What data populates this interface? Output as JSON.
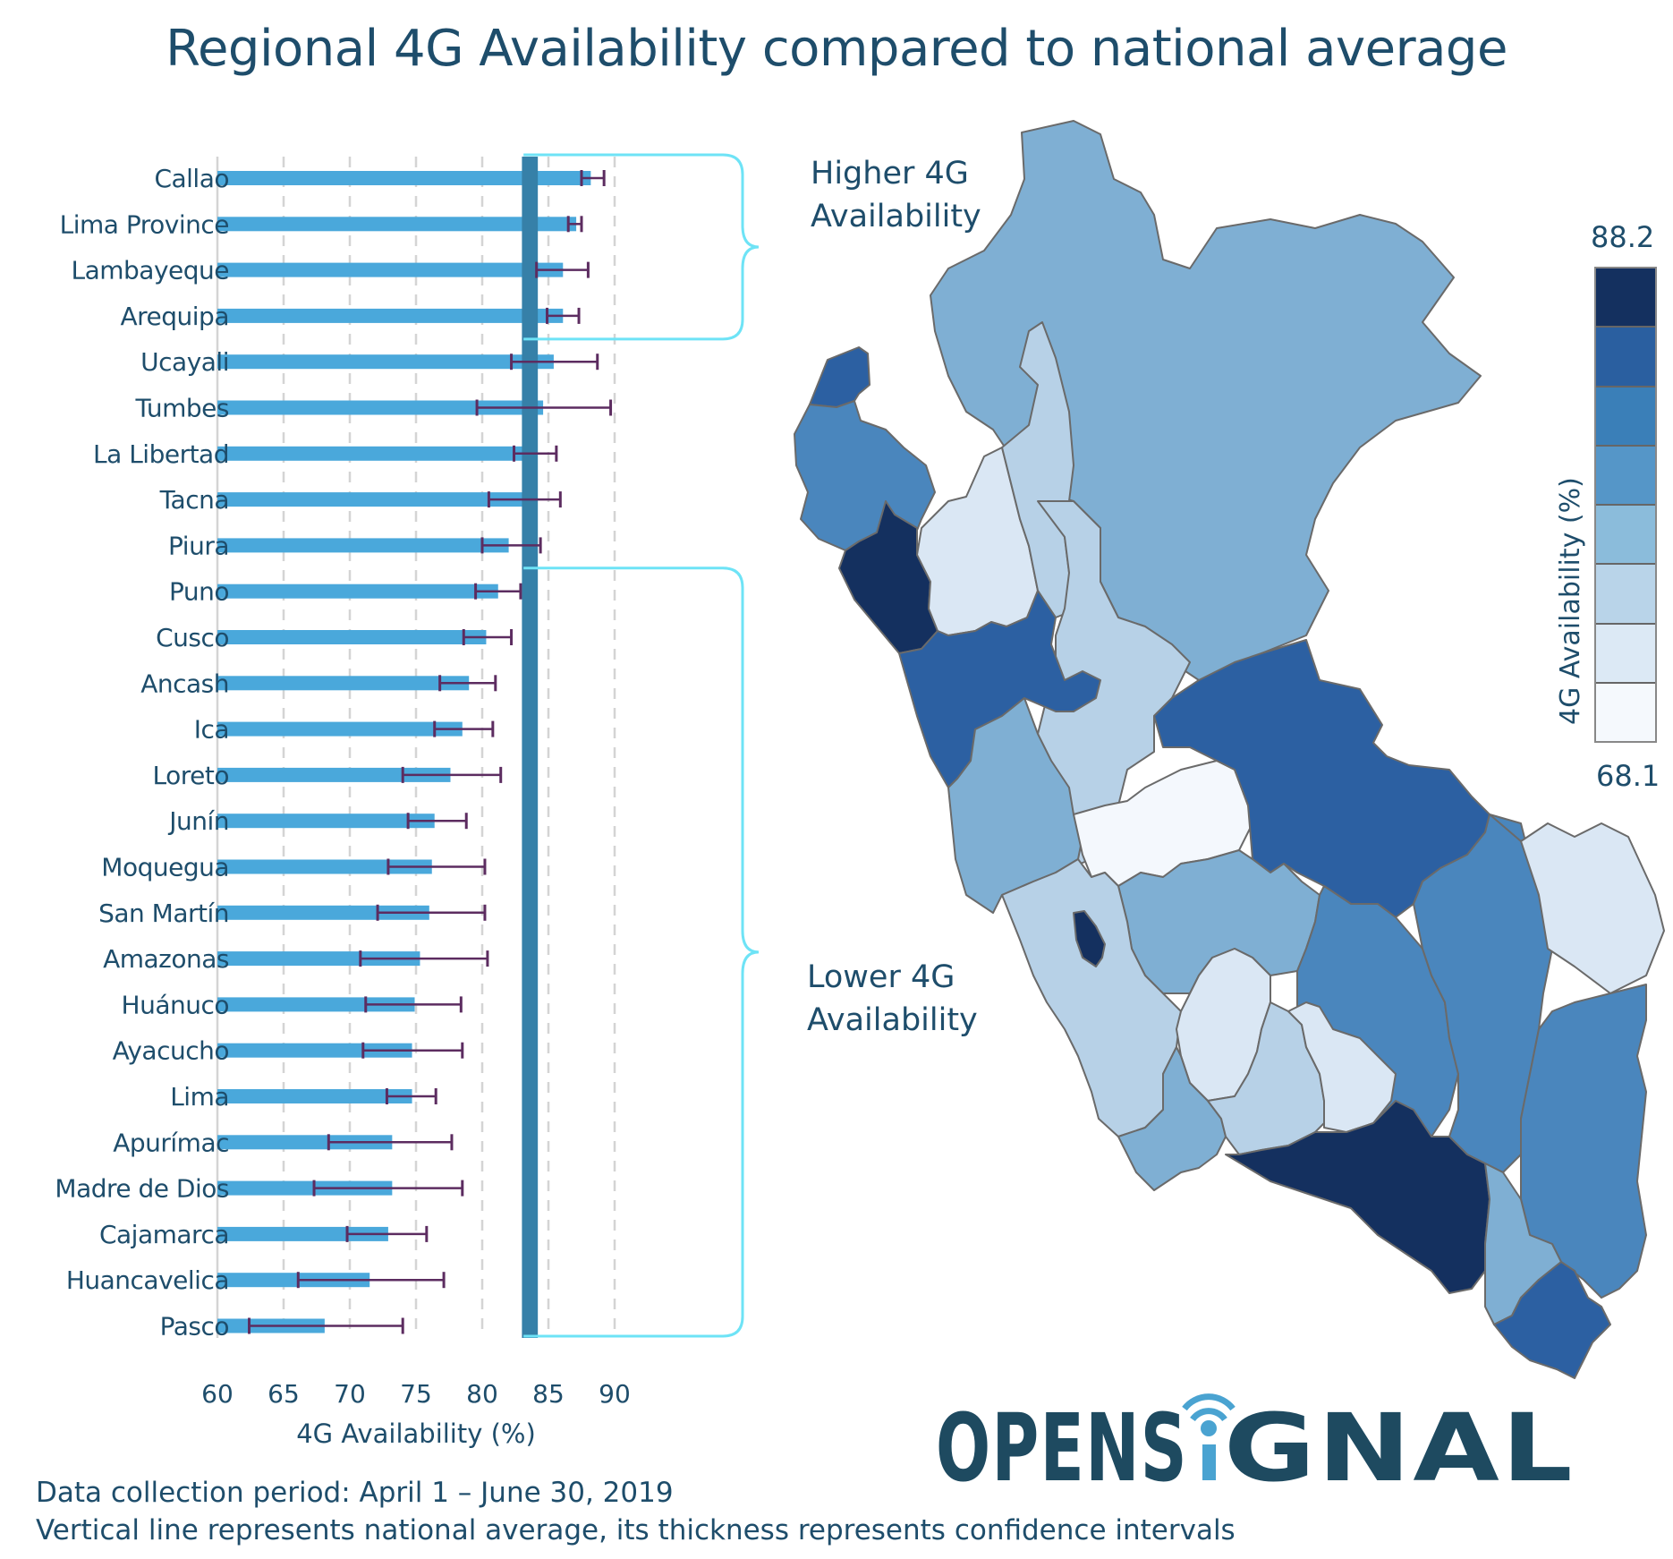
{
  "title": "Regional 4G Availability compared to national average",
  "annotations": {
    "higher_line1": "Higher 4G",
    "higher_line2": "Availability",
    "lower_line1": "Lower 4G",
    "lower_line2": "Availability"
  },
  "legend": {
    "title": "4G Availability (%)",
    "max": "88.2",
    "min": "68.1",
    "colors": [
      "#14305f",
      "#2a5fa0",
      "#3a7fb8",
      "#5596c8",
      "#8bbcdb",
      "#b9d4e9",
      "#dce9f5",
      "#f5f9fd"
    ]
  },
  "map": {
    "colors": {
      "darkest": "#14305f",
      "dark": "#2c60a2",
      "mid_dark": "#4a86bd",
      "mid": "#7fafd3",
      "light": "#b7d1e7",
      "lighter": "#dae7f4",
      "lightest": "#f4f8fd"
    }
  },
  "footer": {
    "line1": "Data collection period: April 1 – June 30, 2019",
    "line2": "Vertical line represents national average, its thickness represents confidence intervals"
  },
  "logo": {
    "text_left": "OPENS",
    "text_right": "GNAL",
    "brand_color": "#1e4a60",
    "accent_color": "#4aa3d1"
  },
  "chart_data": {
    "type": "bar",
    "orientation": "horizontal",
    "title": "Regional 4G Availability compared to national average",
    "xlabel": "4G Availability (%)",
    "ylabel": "",
    "xlim": [
      60,
      92
    ],
    "xticks": [
      60,
      65,
      70,
      75,
      80,
      85,
      90
    ],
    "grid": "vertical dashed",
    "bar_color": "#4aa8db",
    "errorbar_color": "#5c2c60",
    "national_average": {
      "value": 83.6,
      "ci_low": 83.0,
      "ci_high": 84.2,
      "color": "#3680a8"
    },
    "categories": [
      "Callao",
      "Lima Province",
      "Lambayeque",
      "Arequipa",
      "Ucayali",
      "Tumbes",
      "La Libertad",
      "Tacna",
      "Piura",
      "Puno",
      "Cusco",
      "Ancash",
      "Ica",
      "Loreto",
      "Junín",
      "Moquegua",
      "San Martín",
      "Amazonas",
      "Huánuco",
      "Ayacucho",
      "Lima",
      "Apurímac",
      "Madre de Dios",
      "Cajamarca",
      "Huancavelica",
      "Pasco"
    ],
    "values": [
      88.2,
      87.1,
      86.1,
      86.1,
      85.4,
      84.6,
      83.9,
      83.2,
      82.0,
      81.2,
      80.3,
      79.0,
      78.5,
      77.6,
      76.4,
      76.2,
      76.0,
      75.3,
      74.9,
      74.7,
      74.7,
      73.2,
      73.2,
      72.9,
      71.5,
      68.1
    ],
    "ci_low": [
      87.5,
      86.5,
      84.1,
      84.9,
      82.2,
      79.6,
      82.4,
      80.5,
      80.0,
      79.5,
      78.6,
      76.8,
      76.4,
      74.0,
      74.4,
      72.9,
      72.1,
      70.8,
      71.2,
      71.0,
      72.8,
      68.4,
      67.3,
      69.8,
      66.1,
      62.4
    ],
    "ci_high": [
      89.2,
      87.5,
      88.0,
      87.3,
      88.7,
      89.7,
      85.6,
      85.9,
      84.4,
      82.9,
      82.2,
      81.0,
      80.8,
      81.4,
      78.8,
      80.2,
      80.2,
      80.4,
      78.4,
      78.5,
      76.5,
      77.7,
      78.5,
      75.8,
      77.1,
      74.0
    ],
    "groups": [
      {
        "label": "Higher 4G Availability",
        "from": "Callao",
        "to": "Arequipa"
      },
      {
        "label": "Lower 4G Availability",
        "from": "Puno",
        "to": "Pasco"
      }
    ]
  }
}
